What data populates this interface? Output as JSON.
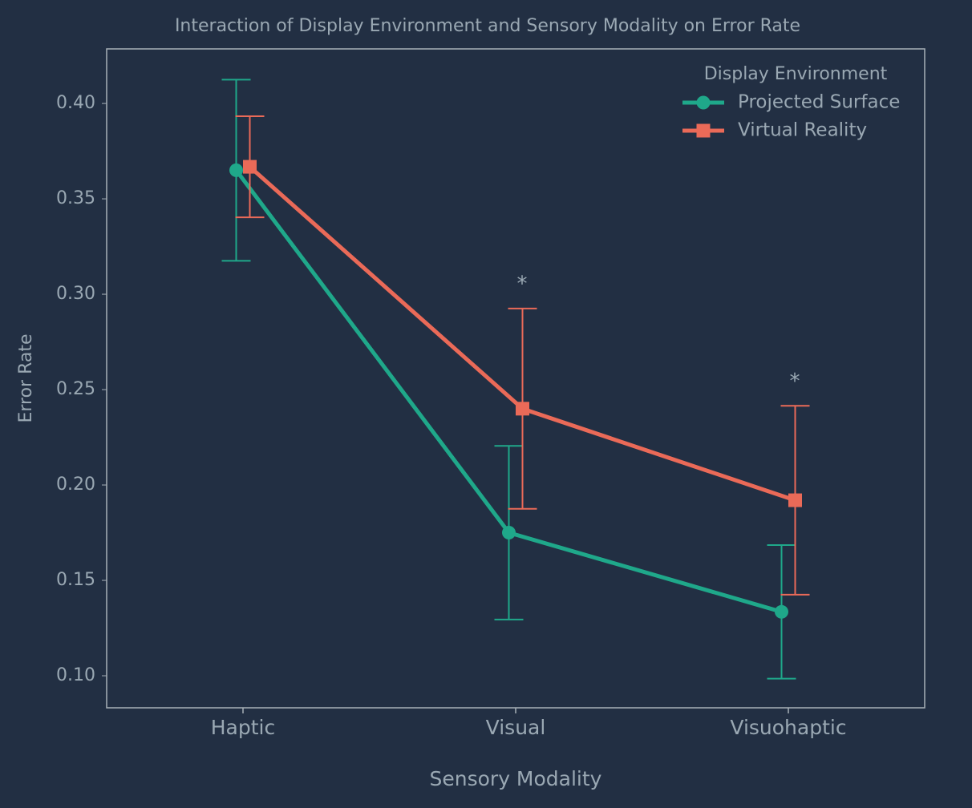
{
  "chart_data": {
    "type": "line",
    "title": "Interaction of Display Environment and Sensory Modality on Error Rate",
    "x_label": "Sensory Modality",
    "y_label": "Error Rate",
    "categories": [
      "Haptic",
      "Visual",
      "Visuohaptic"
    ],
    "series": [
      {
        "name": "Projected Surface",
        "color": "#1fa88a",
        "marker": "circle",
        "values": [
          0.365,
          0.175,
          0.1335
        ],
        "errors": [
          0.0475,
          0.0455,
          0.035
        ]
      },
      {
        "name": "Virtual Reality",
        "color": "#ea6a58",
        "marker": "square",
        "values": [
          0.3668,
          0.24,
          0.192
        ],
        "errors": [
          0.0265,
          0.0525,
          0.0495
        ]
      }
    ],
    "legend_title": "Display Environment",
    "legend": "upper right",
    "annotations": [
      {
        "text": "*",
        "category": "Visual"
      },
      {
        "text": "*",
        "category": "Visuohaptic"
      }
    ],
    "ylim": [
      0.0832,
      0.4286
    ],
    "yticks": [
      {
        "value": 0.1,
        "label": "0.10"
      },
      {
        "value": 0.15,
        "label": "0.15"
      },
      {
        "value": 0.2,
        "label": "0.20"
      },
      {
        "value": 0.25,
        "label": "0.25"
      },
      {
        "value": 0.3,
        "label": "0.30"
      },
      {
        "value": 0.35,
        "label": "0.35"
      },
      {
        "value": 0.4,
        "label": "0.40"
      }
    ],
    "grid": false
  }
}
